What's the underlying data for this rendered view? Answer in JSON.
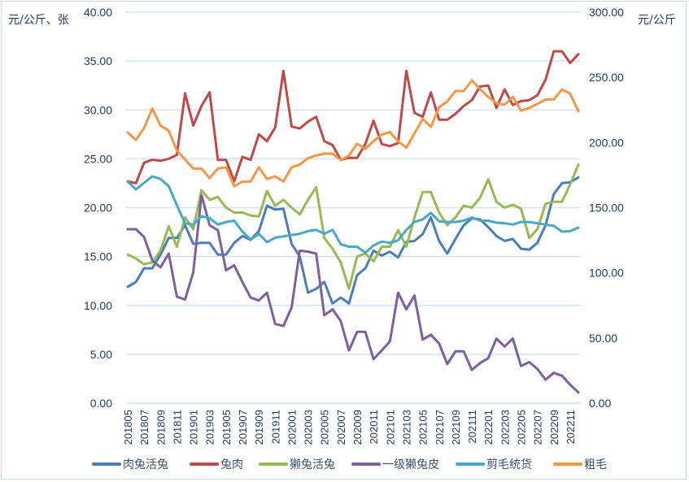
{
  "chart_data": {
    "type": "line",
    "title": "",
    "left_axis_label": "元/公斤、张",
    "right_axis_label": "元/公斤",
    "ylim_left": [
      0,
      40
    ],
    "yticks_left": [
      "0.00",
      "5.00",
      "10.00",
      "15.00",
      "20.00",
      "25.00",
      "30.00",
      "35.00",
      "40.00"
    ],
    "ylim_right": [
      0,
      300
    ],
    "yticks_right": [
      "0.00",
      "50.00",
      "100.00",
      "150.00",
      "200.00",
      "250.00",
      "300.00"
    ],
    "grid": true,
    "legend_position": "bottom",
    "x_tick_labels": [
      "201805",
      "201807",
      "201809",
      "201811",
      "201901",
      "201903",
      "201905",
      "201907",
      "201909",
      "201911",
      "202001",
      "202003",
      "202005",
      "202007",
      "202009",
      "202011",
      "202101",
      "202103",
      "202105",
      "202107",
      "202109",
      "202111",
      "202201",
      "202203",
      "202205",
      "202207",
      "202209",
      "202211"
    ],
    "x_start": "201805",
    "x_end": "202212",
    "series": [
      {
        "name": "肉兔活兔",
        "axis": "left",
        "color": "#4a7ebb",
        "values": [
          11.9,
          12.4,
          13.8,
          13.8,
          15.2,
          16.9,
          16.9,
          18.2,
          16.3,
          16.4,
          16.4,
          15.2,
          15.2,
          16.4,
          17.1,
          16.7,
          17.6,
          20.2,
          19.8,
          19.9,
          16.3,
          15.0,
          11.3,
          11.7,
          12.4,
          10.2,
          10.8,
          10.2,
          13.1,
          13.8,
          15.6,
          15.1,
          15.5,
          14.9,
          16.5,
          16.6,
          17.3,
          19.0,
          16.6,
          15.3,
          16.8,
          18.2,
          18.9,
          18.8,
          18.0,
          17.1,
          16.6,
          16.8,
          15.8,
          15.7,
          16.4,
          18.2,
          21.4,
          22.5,
          22.6,
          23.1
        ]
      },
      {
        "name": "兔肉",
        "axis": "left",
        "color": "#be4b48",
        "values": [
          22.7,
          22.5,
          24.6,
          24.9,
          24.8,
          25.0,
          25.4,
          31.7,
          28.4,
          30.4,
          31.8,
          24.9,
          24.9,
          22.7,
          25.2,
          24.9,
          27.5,
          26.8,
          28.2,
          34.0,
          28.3,
          28.1,
          28.8,
          29.3,
          26.8,
          26.4,
          24.9,
          25.1,
          25.1,
          26.5,
          28.9,
          26.5,
          26.3,
          26.6,
          34.0,
          29.7,
          29.3,
          31.8,
          29.0,
          29.0,
          29.6,
          30.4,
          31.0,
          32.4,
          32.5,
          30.2,
          32.1,
          30.5,
          30.9,
          31.0,
          31.5,
          33.1,
          36.0,
          36.0,
          34.8,
          35.7
        ]
      },
      {
        "name": "獭兔活兔",
        "axis": "left",
        "color": "#98b954",
        "values": [
          15.2,
          14.8,
          14.2,
          14.4,
          15.6,
          18.1,
          16.0,
          19.0,
          17.8,
          21.8,
          20.8,
          21.1,
          20.0,
          19.5,
          19.5,
          19.2,
          19.1,
          21.7,
          20.2,
          20.8,
          20.0,
          19.3,
          20.8,
          22.1,
          16.9,
          15.8,
          14.4,
          11.7,
          15.0,
          15.3,
          14.5,
          16.0,
          16.0,
          17.7,
          16.0,
          19.0,
          21.6,
          21.6,
          19.5,
          18.2,
          19.0,
          20.2,
          20.0,
          21.0,
          22.9,
          20.6,
          20.0,
          20.3,
          19.9,
          16.9,
          17.8,
          20.4,
          20.6,
          20.6,
          22.4,
          24.4
        ]
      },
      {
        "name": "一级獭兔皮",
        "axis": "left",
        "color": "#7d60a0",
        "values": [
          17.8,
          17.8,
          17.0,
          14.6,
          13.9,
          15.3,
          10.9,
          10.6,
          13.4,
          21.3,
          18.2,
          17.7,
          13.6,
          14.1,
          12.4,
          10.8,
          10.5,
          11.3,
          8.1,
          7.9,
          9.8,
          15.6,
          15.5,
          15.3,
          9.0,
          9.6,
          8.4,
          5.4,
          7.3,
          7.3,
          4.5,
          5.4,
          6.3,
          11.3,
          9.6,
          11.0,
          6.5,
          7.0,
          6.1,
          4.0,
          5.3,
          5.3,
          3.4,
          4.1,
          4.6,
          6.6,
          5.8,
          6.6,
          3.8,
          4.2,
          3.5,
          2.4,
          3.1,
          2.8,
          1.9,
          1.1
        ]
      },
      {
        "name": "剪毛统货",
        "axis": "right",
        "color": "#46aac5",
        "values": [
          170,
          164,
          169,
          174,
          172,
          166.5,
          152,
          138,
          137,
          143.5,
          142,
          137,
          139,
          140,
          131.6,
          125.4,
          130,
          123.5,
          127,
          128,
          129,
          130,
          132,
          133,
          130,
          133,
          122,
          120,
          120,
          115.5,
          121,
          124,
          123,
          125,
          133,
          139,
          141,
          146,
          139.5,
          139,
          139,
          140,
          142.5,
          140,
          140,
          138.5,
          138,
          137,
          139,
          139,
          138,
          137,
          136,
          131.6,
          132,
          134.7
        ]
      },
      {
        "name": "粗毛",
        "axis": "right",
        "color": "#f79646",
        "values": [
          207.7,
          202,
          211,
          226,
          213,
          209,
          194,
          187,
          180,
          180,
          172.7,
          180,
          181,
          166.5,
          170,
          170,
          181,
          172,
          174,
          170,
          181,
          183,
          188,
          190,
          191.5,
          191.5,
          186.5,
          190,
          199,
          195,
          201,
          206,
          208,
          201,
          196,
          207,
          218,
          212,
          227,
          231.5,
          239.5,
          239.5,
          247.6,
          241,
          235,
          230,
          229,
          235,
          224.5,
          226.5,
          229.5,
          233,
          233,
          240.7,
          237.5,
          224
        ]
      }
    ]
  }
}
